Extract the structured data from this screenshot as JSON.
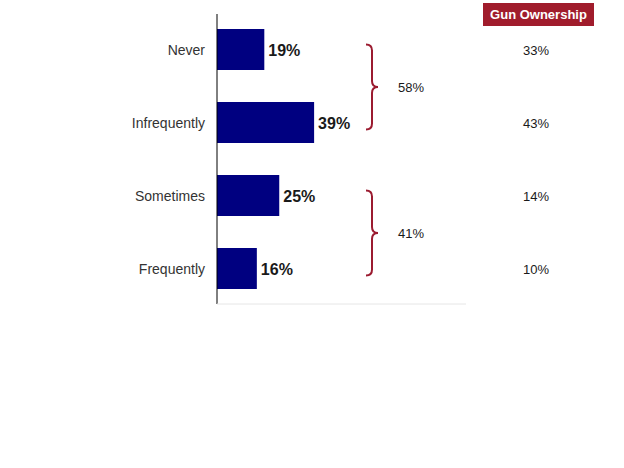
{
  "chart_data": {
    "type": "bar",
    "orientation": "horizontal",
    "categories": [
      "Never",
      "Infrequently",
      "Sometimes",
      "Frequently"
    ],
    "values": [
      19,
      39,
      25,
      16
    ],
    "value_labels": [
      "19%",
      "39%",
      "25%",
      "16%"
    ],
    "data_labels": true,
    "color": "#000080",
    "xlim": [
      0,
      100
    ],
    "tick_labels": "y",
    "grid": false,
    "brackets": [
      {
        "value": 58,
        "label": "58%",
        "categories": [
          "Never",
          "Infrequently"
        ]
      },
      {
        "value": 41,
        "label": "41%",
        "categories": [
          "Sometimes",
          "Frequently"
        ]
      }
    ],
    "side_column": {
      "title": "Gun Ownership",
      "values": [
        33,
        43,
        14,
        10
      ],
      "value_labels": [
        "33%",
        "43%",
        "14%",
        "10%"
      ]
    }
  }
}
